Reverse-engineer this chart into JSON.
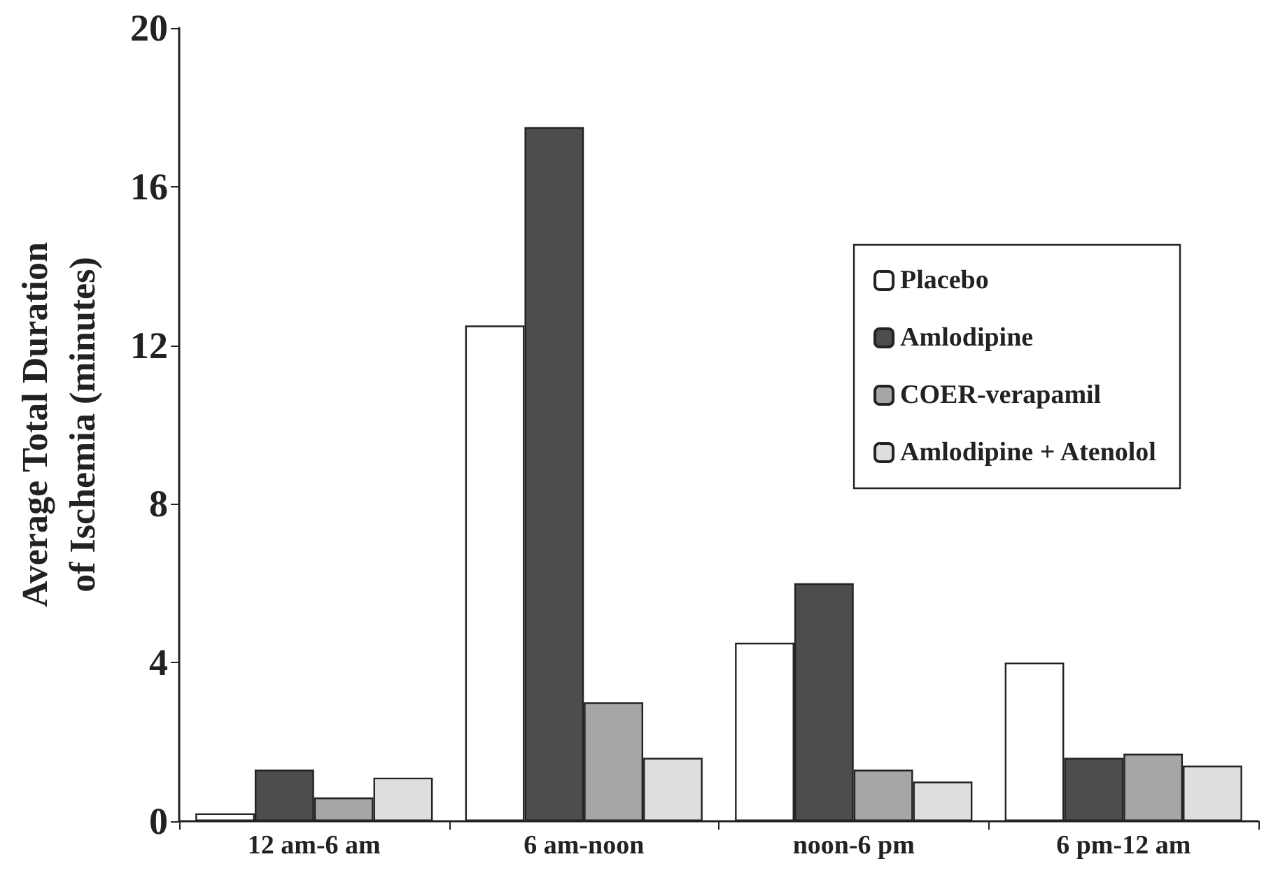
{
  "chart_data": {
    "type": "bar",
    "ylabel": "Average Total Duration\nof Ischemia (minutes)",
    "categories": [
      "12 am-6 am",
      "6 am-noon",
      "noon-6 pm",
      "6 pm-12 am"
    ],
    "series": [
      {
        "name": "Placebo",
        "color": "#ffffff",
        "values": [
          0.2,
          12.5,
          4.5,
          4.0
        ]
      },
      {
        "name": "Amlodipine",
        "color": "#4d4d4f",
        "values": [
          1.3,
          17.5,
          6.0,
          1.6
        ]
      },
      {
        "name": "COER-verapamil",
        "color": "#a6a6a8",
        "values": [
          0.6,
          3.0,
          1.3,
          1.7
        ]
      },
      {
        "name": "Amlodipine + Atenolol",
        "color": "#dedede",
        "values": [
          1.1,
          1.6,
          1.0,
          1.4
        ]
      }
    ],
    "ylim": [
      0,
      20
    ],
    "yticks": [
      0,
      4,
      8,
      12,
      16,
      20
    ],
    "grid": false,
    "legend": "top right"
  }
}
